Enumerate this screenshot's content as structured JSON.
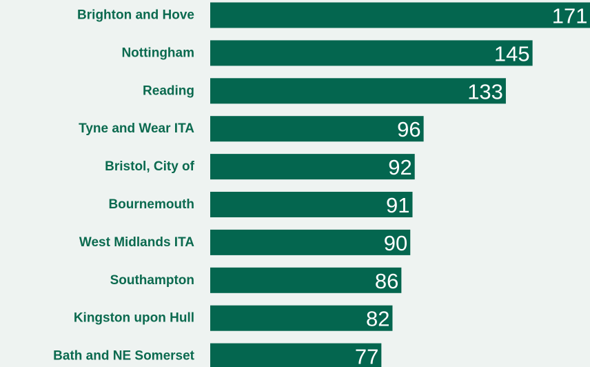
{
  "chart_data": {
    "type": "barh",
    "categories": [
      "Brighton and Hove",
      "Nottingham",
      "Reading",
      "Tyne and Wear ITA",
      "Bristol, City of",
      "Bournemouth",
      "West Midlands ITA",
      "Southampton",
      "Kingston upon Hull",
      "Bath and NE Somerset"
    ],
    "values": [
      171,
      145,
      133,
      96,
      92,
      91,
      90,
      86,
      82,
      77
    ],
    "color": "#04664f"
  }
}
